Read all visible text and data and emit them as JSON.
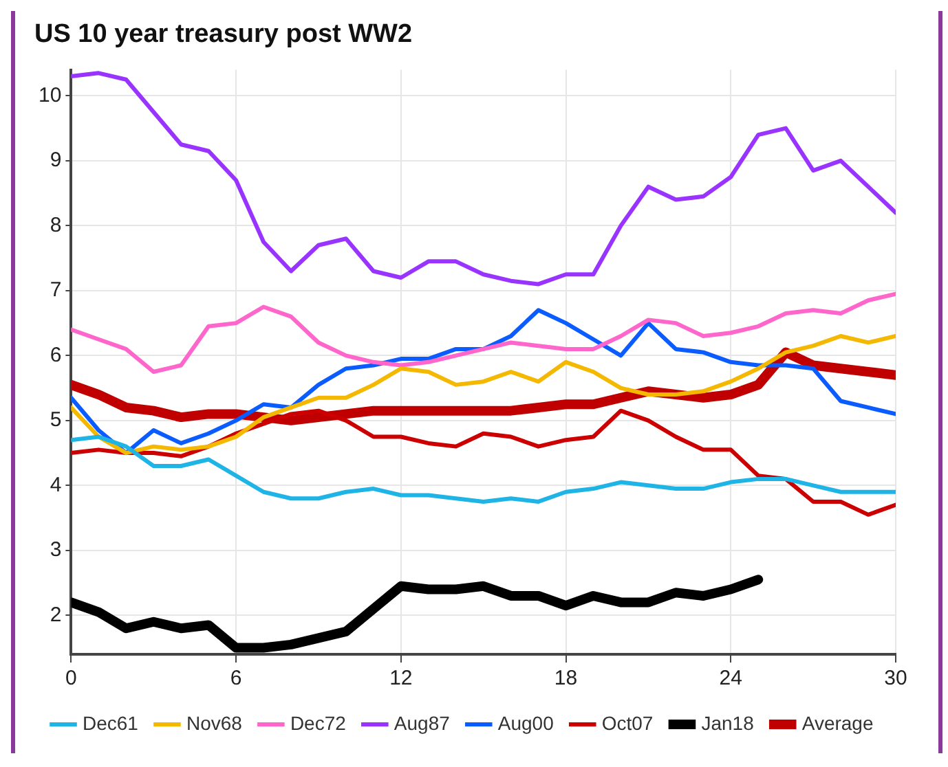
{
  "chart_data": {
    "type": "line",
    "title": "US 10 year treasury post WW2",
    "x": [
      0,
      1,
      2,
      3,
      4,
      5,
      6,
      7,
      8,
      9,
      10,
      11,
      12,
      13,
      14,
      15,
      16,
      17,
      18,
      19,
      20,
      21,
      22,
      23,
      24,
      25,
      26,
      27,
      28,
      29,
      30
    ],
    "xlim": [
      0,
      30
    ],
    "xticks": [
      0,
      6,
      12,
      18,
      24,
      30
    ],
    "ylim": [
      1.4,
      10.4
    ],
    "yticks": [
      2,
      3,
      4,
      5,
      6,
      7,
      8,
      9,
      10
    ],
    "grid": true,
    "legend": "bottom",
    "marker": "none",
    "line_style": "solid",
    "series": [
      {
        "name": "Dec61",
        "color": "#1fb4e6",
        "values": [
          4.7,
          4.75,
          4.6,
          4.3,
          4.3,
          4.4,
          4.15,
          3.9,
          3.8,
          3.8,
          3.9,
          3.95,
          3.85,
          3.85,
          3.8,
          3.75,
          3.8,
          3.75,
          3.9,
          3.95,
          4.05,
          4.0,
          3.95,
          3.95,
          4.05,
          4.1,
          4.1,
          4.0,
          3.9,
          3.9,
          3.9
        ]
      },
      {
        "name": "Nov68",
        "color": "#f5b800",
        "values": [
          5.2,
          4.75,
          4.5,
          4.6,
          4.55,
          4.6,
          4.75,
          5.05,
          5.2,
          5.35,
          5.35,
          5.55,
          5.8,
          5.75,
          5.55,
          5.6,
          5.75,
          5.6,
          5.9,
          5.75,
          5.5,
          5.4,
          5.4,
          5.45,
          5.6,
          5.8,
          6.05,
          6.15,
          6.3,
          6.2,
          6.3
        ]
      },
      {
        "name": "Dec72",
        "color": "#ff66cc",
        "values": [
          6.4,
          6.25,
          6.1,
          5.75,
          5.85,
          6.45,
          6.5,
          6.75,
          6.6,
          6.2,
          6.0,
          5.9,
          5.85,
          5.9,
          6.0,
          6.1,
          6.2,
          6.15,
          6.1,
          6.1,
          6.3,
          6.55,
          6.5,
          6.3,
          6.35,
          6.45,
          6.65,
          6.7,
          6.65,
          6.85,
          6.95
        ]
      },
      {
        "name": "Aug87",
        "color": "#9933ff",
        "values": [
          10.3,
          10.35,
          10.25,
          9.75,
          9.25,
          9.15,
          8.7,
          7.75,
          7.3,
          7.7,
          7.8,
          7.3,
          7.2,
          7.45,
          7.45,
          7.25,
          7.15,
          7.1,
          7.25,
          7.25,
          8.0,
          8.6,
          8.4,
          8.45,
          8.75,
          9.4,
          9.5,
          8.85,
          9.0,
          8.6,
          8.2
        ]
      },
      {
        "name": "Aug00",
        "color": "#0a5cff",
        "values": [
          5.35,
          4.85,
          4.5,
          4.85,
          4.65,
          4.8,
          5.0,
          5.25,
          5.2,
          5.55,
          5.8,
          5.85,
          5.95,
          5.95,
          6.1,
          6.1,
          6.3,
          6.7,
          6.5,
          6.25,
          6.0,
          6.5,
          6.1,
          6.05,
          5.9,
          5.85,
          5.85,
          5.8,
          5.3,
          5.2,
          5.1
        ]
      },
      {
        "name": "Oct07",
        "color": "#cc0000",
        "values": [
          4.5,
          4.55,
          4.5,
          4.5,
          4.45,
          4.6,
          4.8,
          4.95,
          5.1,
          5.15,
          5.0,
          4.75,
          4.75,
          4.65,
          4.6,
          4.8,
          4.75,
          4.6,
          4.7,
          4.75,
          5.15,
          5.0,
          4.75,
          4.55,
          4.55,
          4.15,
          4.1,
          3.75,
          3.75,
          3.55,
          3.7
        ]
      },
      {
        "name": "Jan18",
        "color": "#000000",
        "values": [
          2.2,
          2.05,
          1.8,
          1.9,
          1.8,
          1.85,
          1.5,
          1.5,
          1.55,
          1.65,
          1.75,
          2.1,
          2.45,
          2.4,
          2.4,
          2.45,
          2.3,
          2.3,
          2.15,
          2.3,
          2.2,
          2.2,
          2.35,
          2.3,
          2.4,
          2.55,
          null,
          null,
          null,
          null,
          null
        ]
      },
      {
        "name": "Average",
        "color": "#c00000",
        "values": [
          5.55,
          5.4,
          5.2,
          5.15,
          5.05,
          5.1,
          5.1,
          5.05,
          5.0,
          5.05,
          5.1,
          5.15,
          5.15,
          5.15,
          5.15,
          5.15,
          5.15,
          5.2,
          5.25,
          5.25,
          5.35,
          5.45,
          5.4,
          5.35,
          5.4,
          5.55,
          6.05,
          5.85,
          5.8,
          5.75,
          5.7
        ]
      }
    ]
  }
}
